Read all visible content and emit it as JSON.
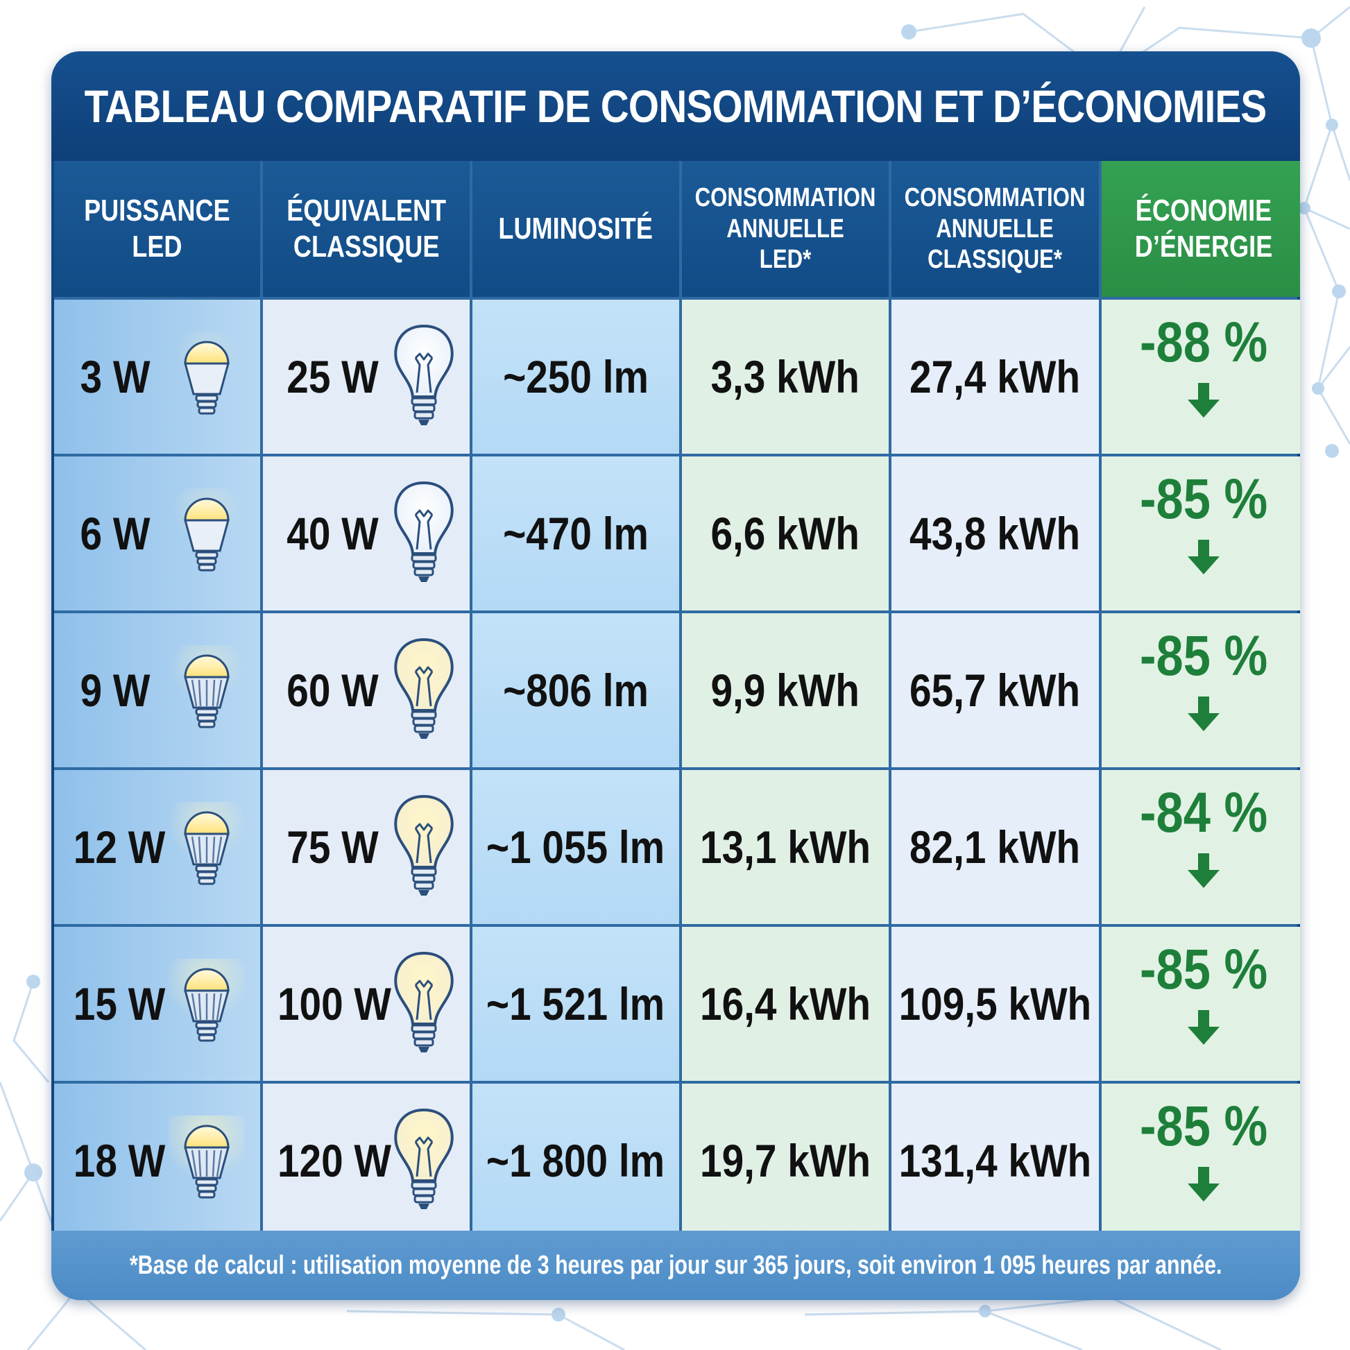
{
  "title": "TABLEAU COMPARATIF DE CONSOMMATION ET D’ÉCONOMIES",
  "headers": [
    [
      "PUISSANCE",
      "LED"
    ],
    [
      "ÉQUIVALENT",
      "CLASSIQUE"
    ],
    [
      "LUMINOSITÉ"
    ],
    [
      "CONSOMMATION",
      "ANNUELLE",
      "LED*"
    ],
    [
      "CONSOMMATION",
      "ANNUELLE",
      "CLASSIQUE*"
    ],
    [
      "ÉCONOMIE",
      "D’ÉNERGIE"
    ]
  ],
  "rows": [
    {
      "led": "3 W",
      "classic": "25 W",
      "lumens": "~250 lm",
      "cons_led": "3,3 kWh",
      "cons_classic": "27,4 kWh",
      "savings": "-88 %"
    },
    {
      "led": "6 W",
      "classic": "40 W",
      "lumens": "~470 lm",
      "cons_led": "6,6 kWh",
      "cons_classic": "43,8 kWh",
      "savings": "-85 %"
    },
    {
      "led": "9 W",
      "classic": "60 W",
      "lumens": "~806 lm",
      "cons_led": "9,9 kWh",
      "cons_classic": "65,7 kWh",
      "savings": "-85 %"
    },
    {
      "led": "12 W",
      "classic": "75 W",
      "lumens": "~1 055 lm",
      "cons_led": "13,1 kWh",
      "cons_classic": "82,1 kWh",
      "savings": "-84 %"
    },
    {
      "led": "15 W",
      "classic": "100 W",
      "lumens": "~1 521 lm",
      "cons_led": "16,4 kWh",
      "cons_classic": "109,5 kWh",
      "savings": "-85 %"
    },
    {
      "led": "18 W",
      "classic": "120 W",
      "lumens": "~1 800 lm",
      "cons_led": "19,7 kWh",
      "cons_classic": "131,4 kWh",
      "savings": "-85 %"
    }
  ],
  "footnote": "*Base de calcul : utilisation moyenne de 3 heures par jour sur 365 jours, soit environ 1 095 heures par année.",
  "colors": {
    "header_blue": "#114b86",
    "header_green": "#2a8e45",
    "savings_green": "#1e7f3a",
    "footnote_blue": "#4c8bc6"
  },
  "icons": {
    "led": "led-bulb-icon",
    "classic": "incandescent-bulb-icon",
    "savings": "down-arrow-icon"
  },
  "chart_data": {
    "type": "table",
    "title": "TABLEAU COMPARATIF DE CONSOMMATION ET D’ÉCONOMIES",
    "columns": [
      "PUISSANCE LED",
      "ÉQUIVALENT CLASSIQUE",
      "LUMINOSITÉ",
      "CONSOMMATION ANNUELLE LED*",
      "CONSOMMATION ANNUELLE CLASSIQUE*",
      "ÉCONOMIE D’ÉNERGIE"
    ],
    "led_watts": [
      3,
      6,
      9,
      12,
      15,
      18
    ],
    "classic_watts": [
      25,
      40,
      60,
      75,
      100,
      120
    ],
    "lumens": [
      250,
      470,
      806,
      1055,
      1521,
      1800
    ],
    "annual_kwh_led": [
      3.3,
      6.6,
      9.9,
      13.1,
      16.4,
      19.7
    ],
    "annual_kwh_classic": [
      27.4,
      43.8,
      65.7,
      82.1,
      109.5,
      131.4
    ],
    "savings_percent": [
      -88,
      -85,
      -85,
      -84,
      -85,
      -85
    ]
  }
}
